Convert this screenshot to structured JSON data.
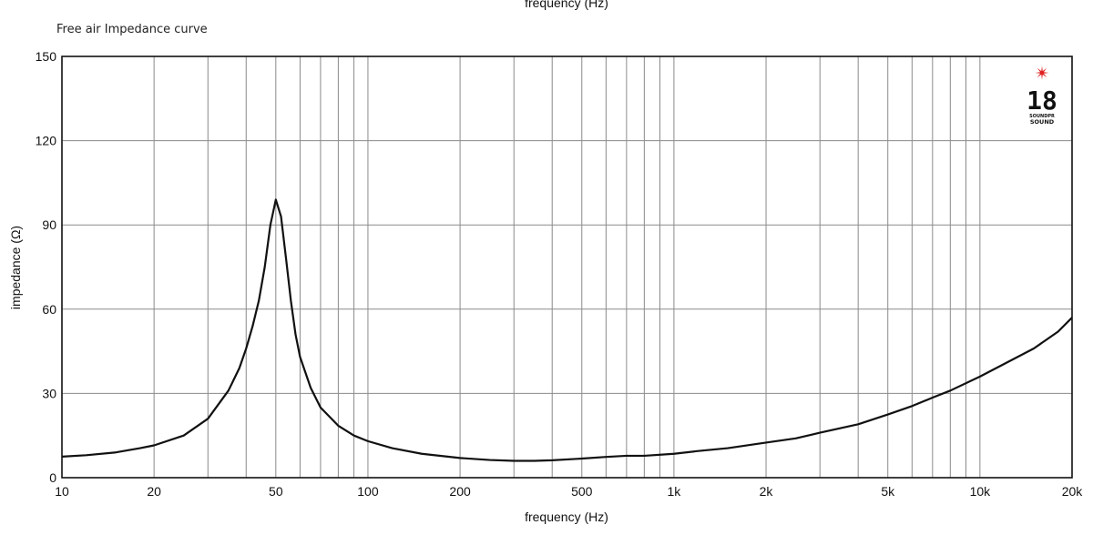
{
  "chart_data": {
    "type": "line",
    "title": "Free air Impedance curve",
    "top_label": "frequency (Hz)",
    "xlabel": "frequency (Hz)",
    "ylabel": "impedance (Ω)",
    "xscale": "log",
    "xlim": [
      10,
      20000
    ],
    "ylim": [
      0,
      150
    ],
    "grid": true,
    "y_ticks": [
      0,
      30,
      60,
      90,
      120,
      150
    ],
    "x_tick_labels": [
      {
        "value": 10,
        "label": "10"
      },
      {
        "value": 20,
        "label": "20"
      },
      {
        "value": 50,
        "label": "50"
      },
      {
        "value": 100,
        "label": "100"
      },
      {
        "value": 200,
        "label": "200"
      },
      {
        "value": 500,
        "label": "500"
      },
      {
        "value": 1000,
        "label": "1k"
      },
      {
        "value": 2000,
        "label": "2k"
      },
      {
        "value": 5000,
        "label": "5k"
      },
      {
        "value": 10000,
        "label": "10k"
      },
      {
        "value": 20000,
        "label": "20k"
      }
    ],
    "x_gridlines": [
      10,
      20,
      30,
      40,
      50,
      60,
      70,
      80,
      90,
      100,
      200,
      300,
      400,
      500,
      600,
      700,
      800,
      900,
      1000,
      2000,
      3000,
      4000,
      5000,
      6000,
      7000,
      8000,
      9000,
      10000,
      20000
    ],
    "series": [
      {
        "x": [
          10,
          12,
          15,
          18,
          20,
          25,
          30,
          35,
          38,
          40,
          42,
          44,
          46,
          48,
          50,
          52,
          54,
          56,
          58,
          60,
          65,
          70,
          80,
          90,
          100,
          120,
          150,
          200,
          250,
          300,
          350,
          400,
          500,
          600,
          700,
          800,
          1000,
          1200,
          1500,
          2000,
          2500,
          3000,
          4000,
          5000,
          6000,
          7000,
          8000,
          10000,
          12000,
          15000,
          18000,
          20000
        ],
        "y": [
          7.5,
          8,
          9,
          10.5,
          11.5,
          15,
          21,
          31,
          39,
          46,
          54,
          63,
          75,
          90,
          99,
          93,
          78,
          63,
          51,
          43,
          32,
          25,
          18.5,
          15,
          13,
          10.5,
          8.5,
          7,
          6.3,
          6,
          6,
          6.2,
          6.8,
          7.4,
          7.8,
          7.8,
          8.5,
          9.5,
          10.5,
          12.5,
          14,
          16,
          19,
          22.5,
          25.5,
          28.5,
          31,
          36,
          40.5,
          46,
          52,
          57
        ]
      }
    ]
  },
  "logo": {
    "number": "18",
    "line1": "SOUNDPR",
    "line2": "SOUND",
    "accent_color": "#e02020"
  }
}
